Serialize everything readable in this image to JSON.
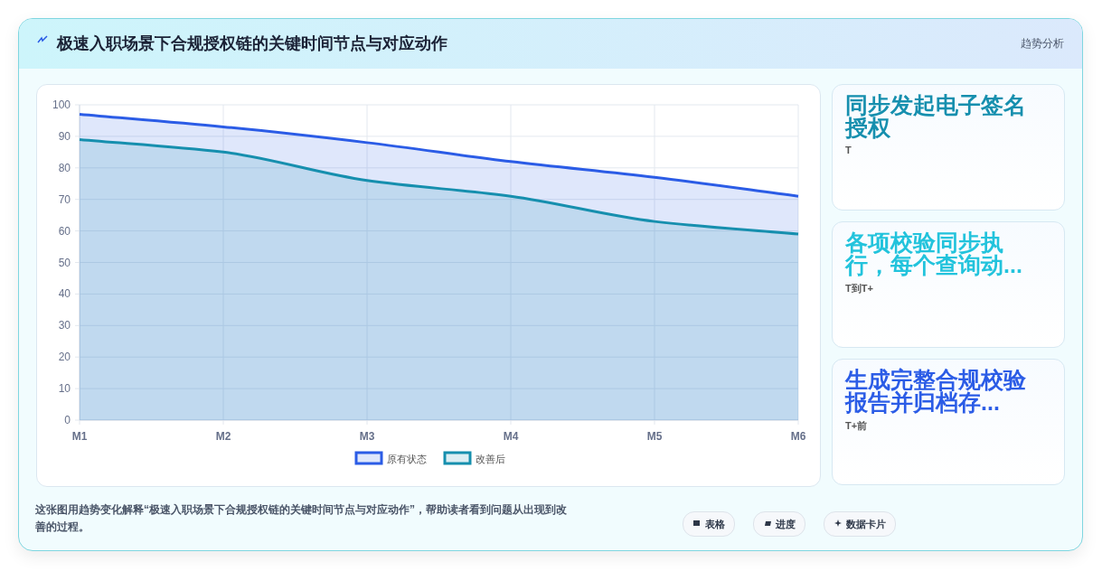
{
  "chart_data": [
    {
      "type": "area",
      "title": "极速入职场景下合规授权链的关键时间节点与对应动作",
      "categories": [
        "M1",
        "M2",
        "M3",
        "M4",
        "M5",
        "M6"
      ],
      "series": [
        {
          "name": "原有状态",
          "color": "#2b5ce6",
          "values": [
            97,
            93,
            88,
            82,
            77,
            71
          ]
        },
        {
          "name": "改善后",
          "color": "#168fae",
          "values": [
            89,
            85,
            76,
            71,
            63,
            59
          ]
        }
      ],
      "ylim": [
        0,
        100
      ],
      "yticks": [
        0,
        10,
        20,
        30,
        40,
        50,
        60,
        70,
        80,
        90,
        100
      ],
      "grid": true,
      "legend": "bottom",
      "marker": "none",
      "line_style": "solid",
      "annotations": [
        "这张图用趋势变化解释“极速入职场景下合规授权链的关键时间节点与对应动作”，帮助读者看到问题从出现到改善的过程。",
        "表格",
        "进度",
        "数据卡片"
      ]
    },
    {
      "type": "other",
      "subtitle": "趋势分析",
      "annotations": [
        "同步发起电子签名授权",
        "T",
        "各项校验同步执行，每个查询动...",
        "T到T+",
        "生成完整合规校验报告并归档存...",
        "T+前"
      ],
      "colors": [
        "#168fae",
        "#22c3dc",
        "#2b5ce6"
      ]
    }
  ]
}
